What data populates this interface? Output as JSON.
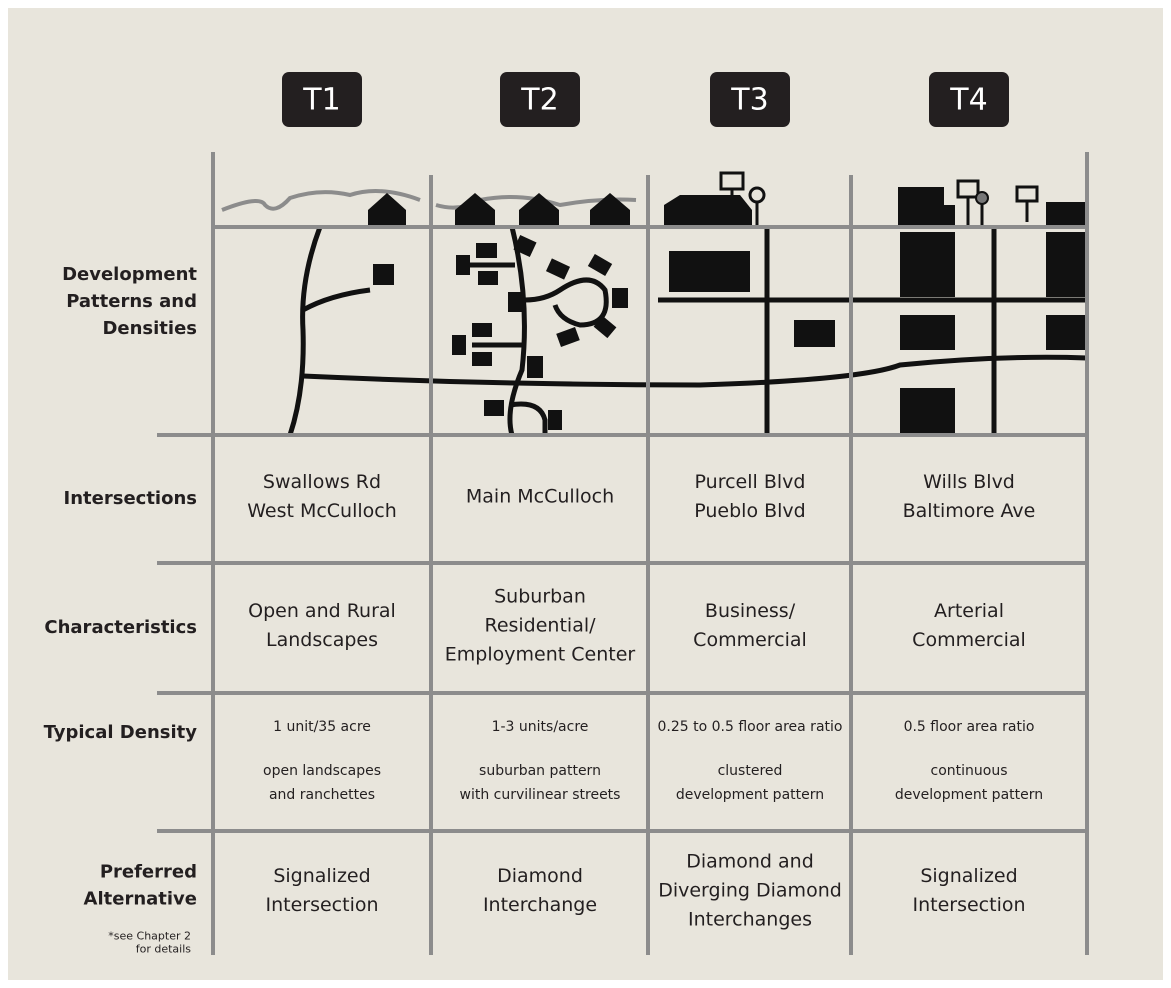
{
  "headers": [
    "T1",
    "T2",
    "T3",
    "T4"
  ],
  "rows": [
    {
      "label": [
        "Development",
        "Patterns and",
        "Densities"
      ]
    },
    {
      "label": [
        "Intersections"
      ],
      "cells": [
        [
          "Swallows Rd",
          "West McCulloch"
        ],
        [
          "Main McCulloch"
        ],
        [
          "Purcell Blvd",
          "Pueblo Blvd"
        ],
        [
          "Wills Blvd",
          "Baltimore Ave"
        ]
      ]
    },
    {
      "label": [
        "Characteristics"
      ],
      "cells": [
        [
          "Open and Rural",
          "Landscapes"
        ],
        [
          "Suburban",
          "Residential/",
          "Employment Center"
        ],
        [
          "Business/",
          "Commercial"
        ],
        [
          "Arterial",
          "Commercial"
        ]
      ]
    },
    {
      "label": [
        "Typical Density"
      ],
      "cells": [
        {
          "density": "1 unit/35 acre",
          "pattern": [
            "open landscapes",
            "and ranchettes"
          ]
        },
        {
          "density": "1-3 units/acre",
          "pattern": [
            "suburban pattern",
            "with curvilinear streets"
          ]
        },
        {
          "density": "0.25 to 0.5 floor area ratio",
          "pattern": [
            "clustered",
            "development pattern"
          ]
        },
        {
          "density": "0.5 floor area ratio",
          "pattern": [
            "continuous",
            "development pattern"
          ]
        }
      ]
    },
    {
      "label": [
        "Preferred",
        "Alternative"
      ],
      "note": [
        "*see Chapter 2",
        "for details"
      ],
      "cells": [
        [
          "Signalized",
          "Intersection"
        ],
        [
          "Diamond",
          "Interchange"
        ],
        [
          "Diamond and",
          "Diverging Diamond",
          "Interchanges"
        ],
        [
          "Signalized",
          "Intersection"
        ]
      ]
    }
  ]
}
